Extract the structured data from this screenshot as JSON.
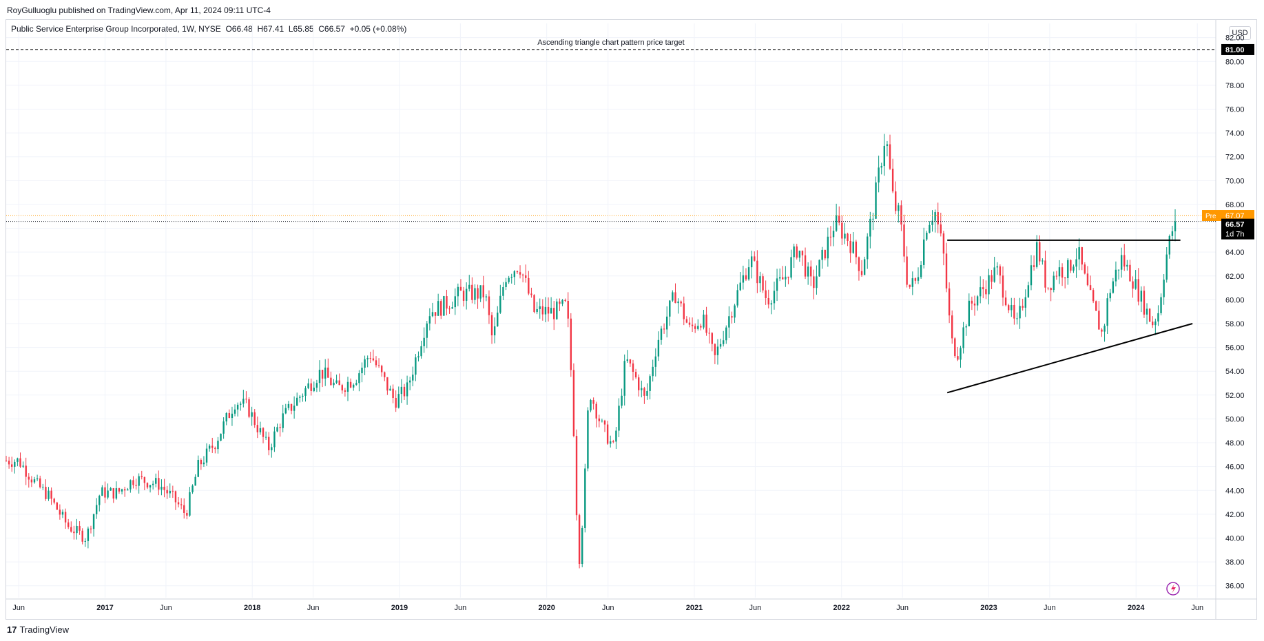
{
  "header": {
    "published": "RoyGulluoglu published on TradingView.com, Apr 11, 2024 09:11 UTC-4",
    "legend": "Public Service Enterprise Group Incorporated, 1W, NYSE  O66.48  H67.41  L65.85  C66.57  +0.05 (+0.08%)",
    "currency": "USD"
  },
  "footer": {
    "logo_mark": "17",
    "brand": "TradingView"
  },
  "colors": {
    "up": "#089981",
    "down": "#f23645",
    "pre": "#ff9800",
    "line": "#000000",
    "grid": "#f0f3fa"
  },
  "chart_data": {
    "type": "candlestick",
    "title": "Public Service Enterprise Group Incorporated, 1W, NYSE",
    "ylim": [
      35,
      82.5
    ],
    "y_ticks": [
      "36.00",
      "38.00",
      "40.00",
      "42.00",
      "44.00",
      "46.00",
      "48.00",
      "50.00",
      "52.00",
      "54.00",
      "56.00",
      "58.00",
      "60.00",
      "62.00",
      "64.00",
      "66.00",
      "68.00",
      "70.00",
      "72.00",
      "74.00",
      "76.00",
      "78.00",
      "80.00",
      "82.00"
    ],
    "x_range": [
      "2016-05-01",
      "2024-07-15"
    ],
    "x_ticks": [
      {
        "date": "2016-06-01",
        "label": "Jun",
        "major": false
      },
      {
        "date": "2017-01-01",
        "label": "2017",
        "major": true
      },
      {
        "date": "2017-06-01",
        "label": "Jun",
        "major": false
      },
      {
        "date": "2018-01-01",
        "label": "2018",
        "major": true
      },
      {
        "date": "2018-06-01",
        "label": "Jun",
        "major": false
      },
      {
        "date": "2019-01-01",
        "label": "2019",
        "major": true
      },
      {
        "date": "2019-06-01",
        "label": "Jun",
        "major": false
      },
      {
        "date": "2020-01-01",
        "label": "2020",
        "major": true
      },
      {
        "date": "2020-06-01",
        "label": "Jun",
        "major": false
      },
      {
        "date": "2021-01-01",
        "label": "2021",
        "major": true
      },
      {
        "date": "2021-06-01",
        "label": "Jun",
        "major": false
      },
      {
        "date": "2022-01-01",
        "label": "2022",
        "major": true
      },
      {
        "date": "2022-06-01",
        "label": "Jun",
        "major": false
      },
      {
        "date": "2023-01-01",
        "label": "2023",
        "major": true
      },
      {
        "date": "2023-06-01",
        "label": "Jun",
        "major": false
      },
      {
        "date": "2024-01-01",
        "label": "2024",
        "major": true
      },
      {
        "date": "2024-06-01",
        "label": "Jun",
        "major": false
      }
    ],
    "price_path": [
      [
        "2016-05-01",
        46.5
      ],
      [
        "2016-06-01",
        46.5
      ],
      [
        "2016-07-15",
        44.5
      ],
      [
        "2016-08-15",
        43.5
      ],
      [
        "2016-10-01",
        41.0
      ],
      [
        "2016-11-15",
        40.0
      ],
      [
        "2016-12-20",
        43.8
      ],
      [
        "2017-02-01",
        43.8
      ],
      [
        "2017-03-15",
        45.0
      ],
      [
        "2017-05-15",
        44.5
      ],
      [
        "2017-06-15",
        43.5
      ],
      [
        "2017-07-20",
        42.0
      ],
      [
        "2017-08-20",
        46.0
      ],
      [
        "2017-10-01",
        48.0
      ],
      [
        "2017-11-20",
        51.5
      ],
      [
        "2017-12-20",
        51.0
      ],
      [
        "2018-02-10",
        47.5
      ],
      [
        "2018-03-15",
        50.0
      ],
      [
        "2018-05-01",
        52.0
      ],
      [
        "2018-06-20",
        54.0
      ],
      [
        "2018-08-01",
        52.5
      ],
      [
        "2018-09-15",
        53.5
      ],
      [
        "2018-10-20",
        55.5
      ],
      [
        "2018-12-20",
        51.5
      ],
      [
        "2019-01-20",
        52.5
      ],
      [
        "2019-03-15",
        59.0
      ],
      [
        "2019-04-20",
        59.5
      ],
      [
        "2019-06-01",
        60.5
      ],
      [
        "2019-08-01",
        60.5
      ],
      [
        "2019-08-20",
        56.5
      ],
      [
        "2019-09-20",
        62.0
      ],
      [
        "2019-10-25",
        63.0
      ],
      [
        "2019-12-01",
        59.0
      ],
      [
        "2020-01-20",
        59.0
      ],
      [
        "2020-02-20",
        59.5
      ],
      [
        "2020-03-05",
        52.0
      ],
      [
        "2020-03-20",
        37.5
      ],
      [
        "2020-04-01",
        42.5
      ],
      [
        "2020-04-15",
        52.5
      ],
      [
        "2020-05-15",
        49.5
      ],
      [
        "2020-06-15",
        47.5
      ],
      [
        "2020-07-15",
        55.0
      ],
      [
        "2020-08-15",
        53.0
      ],
      [
        "2020-09-01",
        51.5
      ],
      [
        "2020-10-01",
        56.5
      ],
      [
        "2020-11-15",
        60.5
      ],
      [
        "2020-12-20",
        57.5
      ],
      [
        "2021-01-20",
        58.5
      ],
      [
        "2021-02-20",
        55.0
      ],
      [
        "2021-04-01",
        59.0
      ],
      [
        "2021-05-20",
        63.5
      ],
      [
        "2021-06-30",
        60.0
      ],
      [
        "2021-08-15",
        62.0
      ],
      [
        "2021-09-15",
        64.5
      ],
      [
        "2021-10-20",
        61.0
      ],
      [
        "2021-12-15",
        66.5
      ],
      [
        "2022-01-20",
        65.0
      ],
      [
        "2022-02-20",
        62.5
      ],
      [
        "2022-03-20",
        67.5
      ],
      [
        "2022-04-20",
        74.0
      ],
      [
        "2022-05-10",
        68.0
      ],
      [
        "2022-05-25",
        67.0
      ],
      [
        "2022-06-15",
        61.0
      ],
      [
        "2022-07-05",
        61.5
      ],
      [
        "2022-08-01",
        66.5
      ],
      [
        "2022-08-20",
        67.5
      ],
      [
        "2022-09-10",
        64.0
      ],
      [
        "2022-09-30",
        56.5
      ],
      [
        "2022-10-15",
        55.5
      ],
      [
        "2022-11-15",
        59.5
      ],
      [
        "2022-12-20",
        61.0
      ],
      [
        "2023-01-20",
        62.5
      ],
      [
        "2023-02-15",
        60.0
      ],
      [
        "2023-03-10",
        57.5
      ],
      [
        "2023-04-10",
        62.0
      ],
      [
        "2023-05-01",
        64.5
      ],
      [
        "2023-05-25",
        61.0
      ],
      [
        "2023-06-20",
        62.5
      ],
      [
        "2023-07-15",
        62.5
      ],
      [
        "2023-08-10",
        64.0
      ],
      [
        "2023-09-01",
        61.0
      ],
      [
        "2023-10-10",
        57.0
      ],
      [
        "2023-10-25",
        60.5
      ],
      [
        "2023-11-25",
        63.5
      ],
      [
        "2023-12-20",
        62.0
      ],
      [
        "2024-01-15",
        60.0
      ],
      [
        "2024-02-10",
        58.0
      ],
      [
        "2024-02-25",
        59.0
      ],
      [
        "2024-03-15",
        63.5
      ],
      [
        "2024-04-01",
        66.0
      ],
      [
        "2024-04-11",
        66.6
      ]
    ],
    "current_price": 66.57,
    "current_price_label": "66.57",
    "countdown": "1d 7h",
    "premarket_label": "Pre",
    "premarket_price": 67.07,
    "premarket_price_label": "67.07",
    "target_price": 81.0,
    "target_price_label": "81.00",
    "annotations": [
      {
        "kind": "horizontal-dashed",
        "price": 81.0,
        "label": "Ascending triangle chart pattern price target"
      },
      {
        "kind": "trendline",
        "from": [
          "2022-09-20",
          65.0
        ],
        "to": [
          "2024-04-20",
          65.0
        ]
      },
      {
        "kind": "trendline",
        "from": [
          "2022-09-20",
          52.2
        ],
        "to": [
          "2024-05-20",
          58.0
        ]
      }
    ]
  }
}
